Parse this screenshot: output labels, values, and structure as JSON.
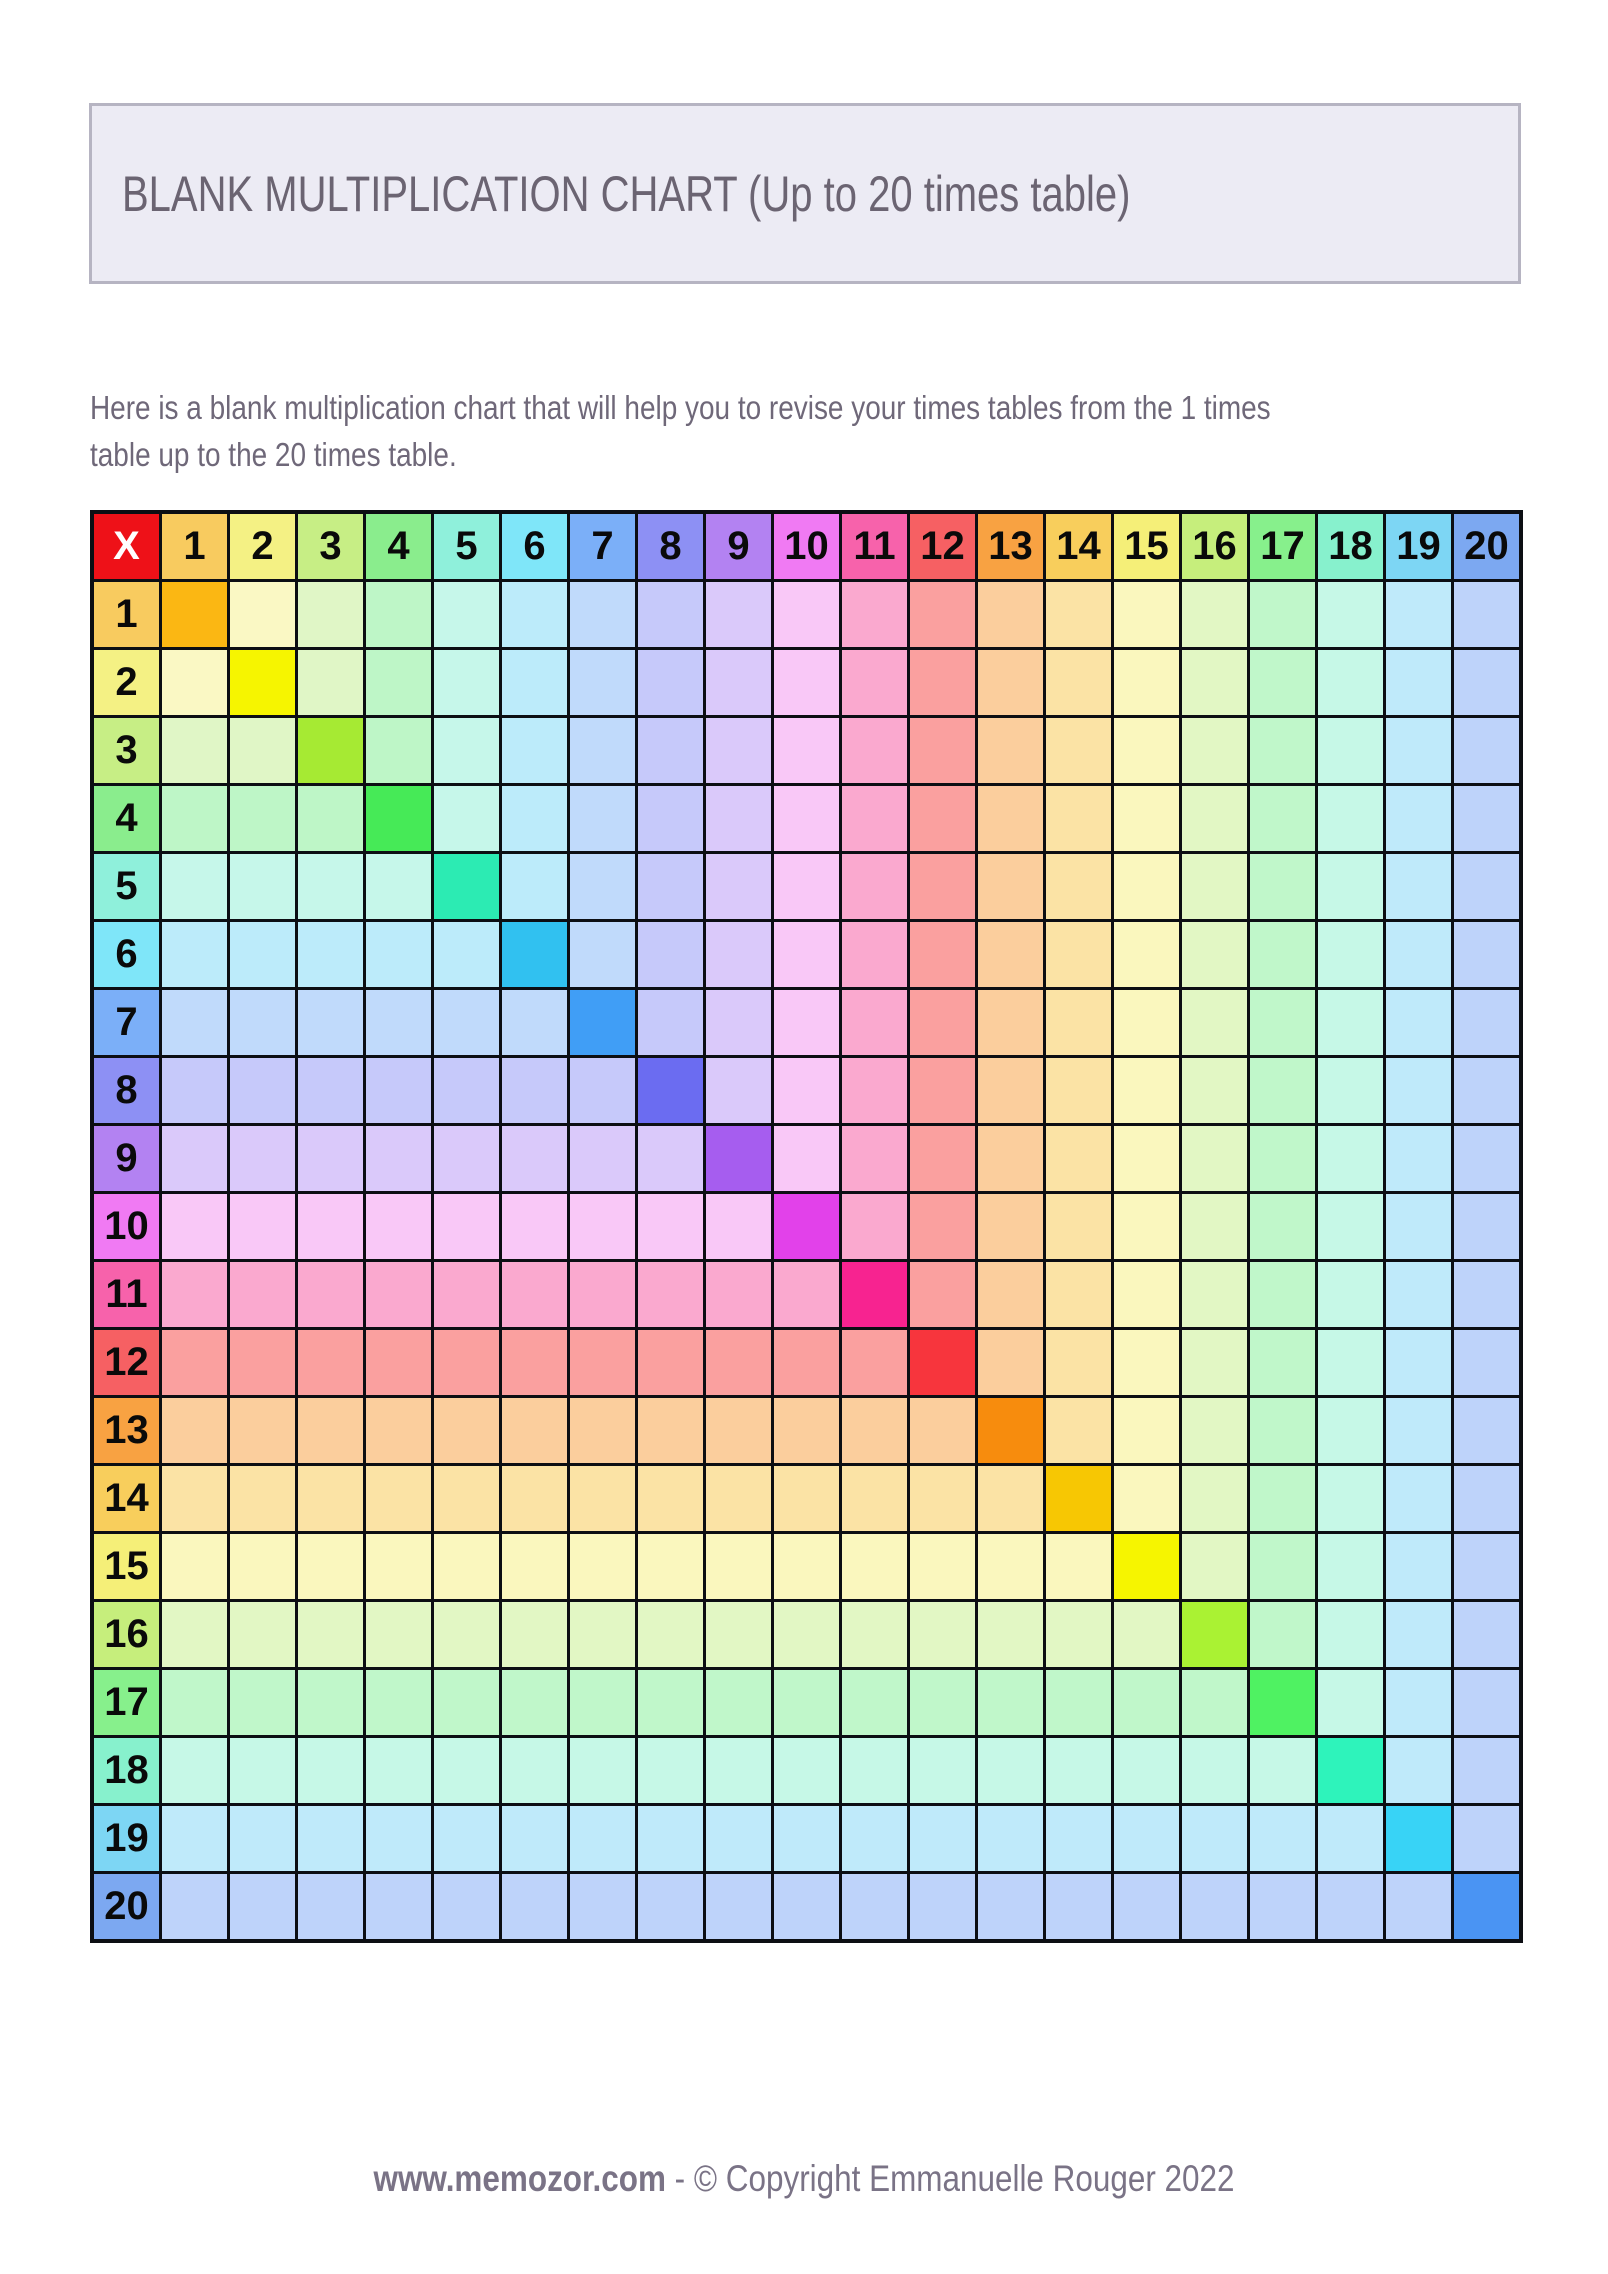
{
  "title_box": {
    "text": "BLANK MULTIPLICATION CHART (Up to 20 times table)",
    "background": "#ECEBF4",
    "border_color": "#B6B4C2",
    "text_color": "#6B6472"
  },
  "intro": {
    "text": "Here is a blank multiplication chart that will help you to revise your times tables from the 1 times\ntable up to the 20 times table.",
    "text_color": "#6F6879"
  },
  "grid": {
    "corner": {
      "label": "X",
      "background": "#EE1118",
      "text_color": "#FFFFFF"
    },
    "headers": [
      "1",
      "2",
      "3",
      "4",
      "5",
      "6",
      "7",
      "8",
      "9",
      "10",
      "11",
      "12",
      "13",
      "14",
      "15",
      "16",
      "17",
      "18",
      "19",
      "20"
    ],
    "header_text_color": "#0A0A0A",
    "border_color": "#0C0E13",
    "header_colors": [
      "#F8CB5F",
      "#F4F184",
      "#C7EE85",
      "#8AED8D",
      "#8FF0DB",
      "#7FE6F9",
      "#7BAFF8",
      "#8D90F4",
      "#B382F2",
      "#F07AF3",
      "#F762AB",
      "#F66063",
      "#F8A242",
      "#F8CE5C",
      "#F5EF78",
      "#C6EE7C",
      "#87F08C",
      "#87F1CD",
      "#7DD6F4",
      "#7CA8F1"
    ],
    "diagonal_colors": [
      "#FBB713",
      "#F6F500",
      "#A6EA33",
      "#46EA57",
      "#2CEBB3",
      "#31C1F0",
      "#409EF6",
      "#6B6CF1",
      "#A65DEF",
      "#E241EA",
      "#F72390",
      "#F7353D",
      "#F78C0D",
      "#F7C703",
      "#F6F500",
      "#AAF233",
      "#4FF262",
      "#2EF3BB",
      "#38D3F6",
      "#4A94F3"
    ],
    "pale_colors": [
      null,
      "#FAF8C4",
      "#E0F6C6",
      "#BEF6C7",
      "#C6F7EA",
      "#BCEBFA",
      "#C0DAFB",
      "#C6C9FA",
      "#DAC9FA",
      "#F9C8F7",
      "#FAA9CF",
      "#FAA09F",
      "#FBCE9D",
      "#FBE3A5",
      "#FAF7BE",
      "#E2F7C4",
      "#C0F7CA",
      "#C6F8E7",
      "#BFEAFA",
      "#BED3FA"
    ],
    "cell_rule": "non-diagonal body cell (r,c) is blank and filled with pale_colors[max(r,c)-1]; diagonal cell (n,n) is blank and filled with diagonal_colors[n-1]; headers show the numbers 1-20"
  },
  "footer": {
    "site": "www.memozor.com",
    "separator": " - ",
    "copyright": "© Copyright Emmanuelle Rouger 2022",
    "text_color": "#7A7386"
  }
}
